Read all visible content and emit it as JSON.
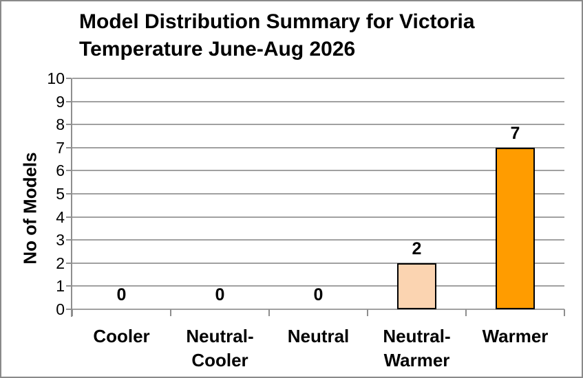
{
  "window": {
    "background": "#ffffff",
    "border_color": "#8a8a8a"
  },
  "chart_data": {
    "type": "bar",
    "title": "Model Distribution Summary for Victoria Temperature June-Aug 2026",
    "title_lines": [
      "Model Distribution Summary for Victoria",
      "Temperature June-Aug 2026"
    ],
    "categories": [
      "Cooler",
      "Neutral-Cooler",
      "Neutral",
      "Neutral-Warmer",
      "Warmer"
    ],
    "values": [
      0,
      0,
      0,
      2,
      7
    ],
    "data_labels": [
      "0",
      "0",
      "0",
      "2",
      "7"
    ],
    "bar_colors": [
      null,
      null,
      null,
      "#fbd4b1",
      "#ff9c00"
    ],
    "bar_border_color": "#000000",
    "xlabel": "",
    "ylabel": "No of Models",
    "ylim": [
      0,
      10
    ],
    "ytick_step": 1,
    "ytick_labels": [
      "0",
      "1",
      "2",
      "3",
      "4",
      "5",
      "6",
      "7",
      "8",
      "9",
      "10"
    ],
    "grid": true,
    "legend": "none",
    "colors": {
      "gridline": "#a0a0a0",
      "axis": "#8e8e8e",
      "text": "#000000"
    }
  }
}
